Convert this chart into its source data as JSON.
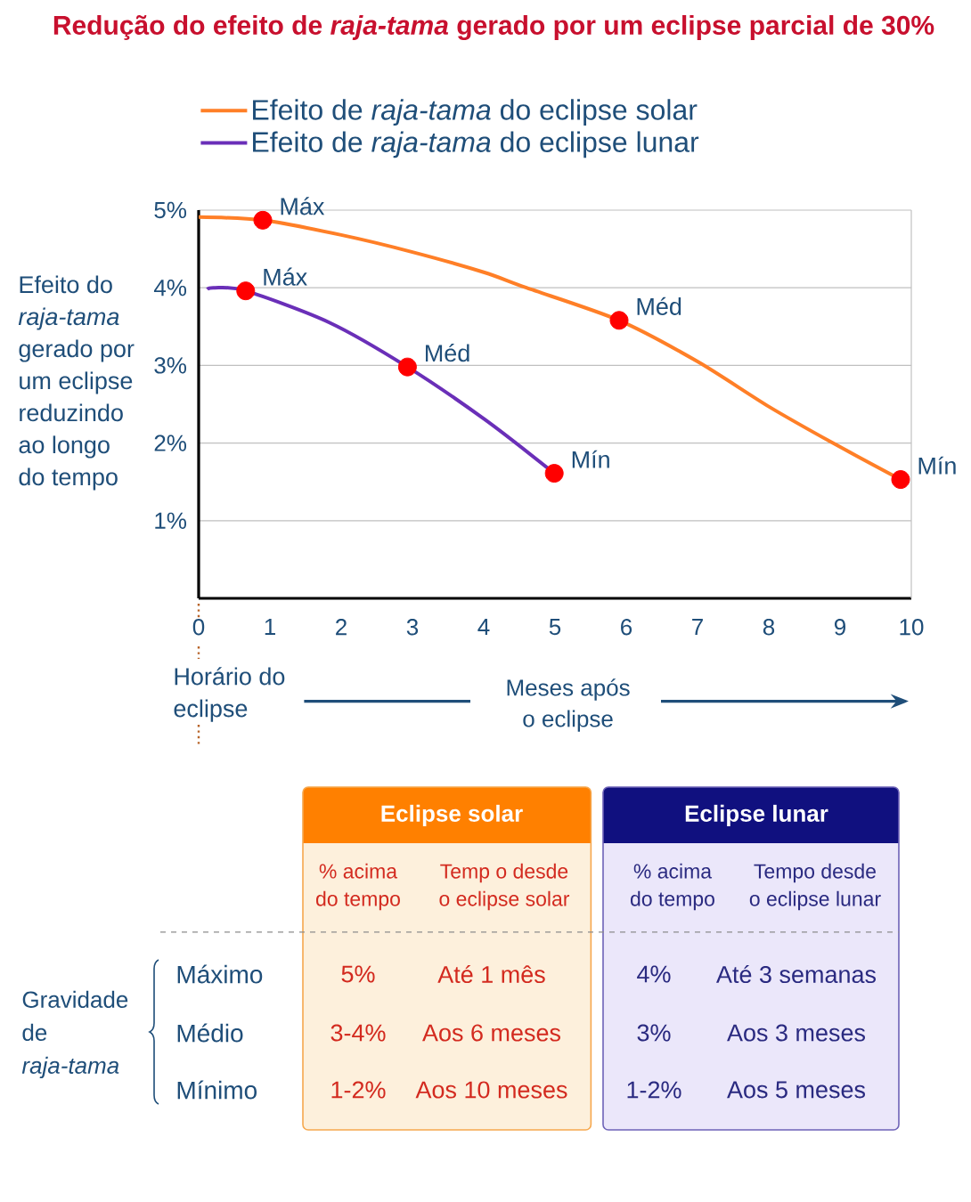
{
  "chart_data": {
    "type": "line",
    "title": "Redução do efeito de *raja-tama* gerado por um eclipse parcial de 30%",
    "xlabel": "Meses após o eclipse",
    "ylabel": "Efeito do *raja-tama* gerado por um eclipse reduzindo ao longo do tempo",
    "xlim": [
      0,
      10
    ],
    "xticks": [
      0,
      1,
      2,
      3,
      4,
      5,
      6,
      7,
      8,
      9,
      10
    ],
    "ylim": [
      0,
      5
    ],
    "yticks": [
      {
        "value": 1,
        "label": "1%"
      },
      {
        "value": 2,
        "label": "2%"
      },
      {
        "value": 3,
        "label": "3%"
      },
      {
        "value": 4,
        "label": "4%"
      },
      {
        "value": 5,
        "label": "5%"
      }
    ],
    "grid": "y",
    "legend": "top",
    "series": [
      {
        "name": "Efeito de *raja-tama* do eclipse solar",
        "color": "#ff7f27",
        "x": [
          0,
          0.9,
          2,
          3,
          4,
          4.6,
          5.9,
          7,
          8,
          8.9,
          9.85
        ],
        "values": [
          4.91,
          4.87,
          4.68,
          4.46,
          4.2,
          4.0,
          3.58,
          3.05,
          2.47,
          2.0,
          1.53
        ]
      },
      {
        "name": "Efeito de *raja-tama* do eclipse lunar",
        "color": "#6a2fb8",
        "x": [
          0.12,
          0.22,
          0.66,
          1.84,
          2.93,
          4.02,
          4.99
        ],
        "values": [
          3.98,
          4.0,
          3.96,
          3.55,
          2.98,
          2.3,
          1.61
        ]
      },
      {
        "type": "scatter",
        "color": "#ff0000",
        "marker": "circle",
        "x": [
          0.9,
          5.9,
          9.85
        ],
        "values": [
          4.87,
          3.58,
          1.53
        ]
      },
      {
        "type": "scatter",
        "color": "#ff0000",
        "marker": "circle",
        "x": [
          0.66,
          2.93,
          4.99
        ],
        "values": [
          3.96,
          2.98,
          1.61
        ]
      }
    ],
    "annotations": [
      {
        "text": "Máx",
        "x": 0.9,
        "y": 4.87
      },
      {
        "text": "Méd",
        "x": 5.9,
        "y": 3.58
      },
      {
        "text": "Mín",
        "x": 9.85,
        "y": 1.53
      },
      {
        "text": "Máx",
        "x": 0.66,
        "y": 3.96
      },
      {
        "text": "Méd",
        "x": 2.93,
        "y": 2.98
      },
      {
        "text": "Mín",
        "x": 4.99,
        "y": 1.61
      },
      "Horário do eclipse",
      "Eclipse solar",
      "Eclipse lunar",
      "% acima do tempo",
      "Temp o desde o eclipse solar",
      "% acima do tempo",
      "Tempo desde o eclipse lunar",
      "Gravidade de *raja-tama*",
      "Máximo",
      "Médio",
      "Mínimo",
      "5%",
      "Até 1 mês",
      "4%",
      "Até 3 semanas",
      "3-4%",
      "Aos 6 meses",
      "3%",
      "Aos 3 meses",
      "1-2%",
      "Aos 10 meses",
      "1-2%",
      "Aos 5 meses"
    ]
  }
}
